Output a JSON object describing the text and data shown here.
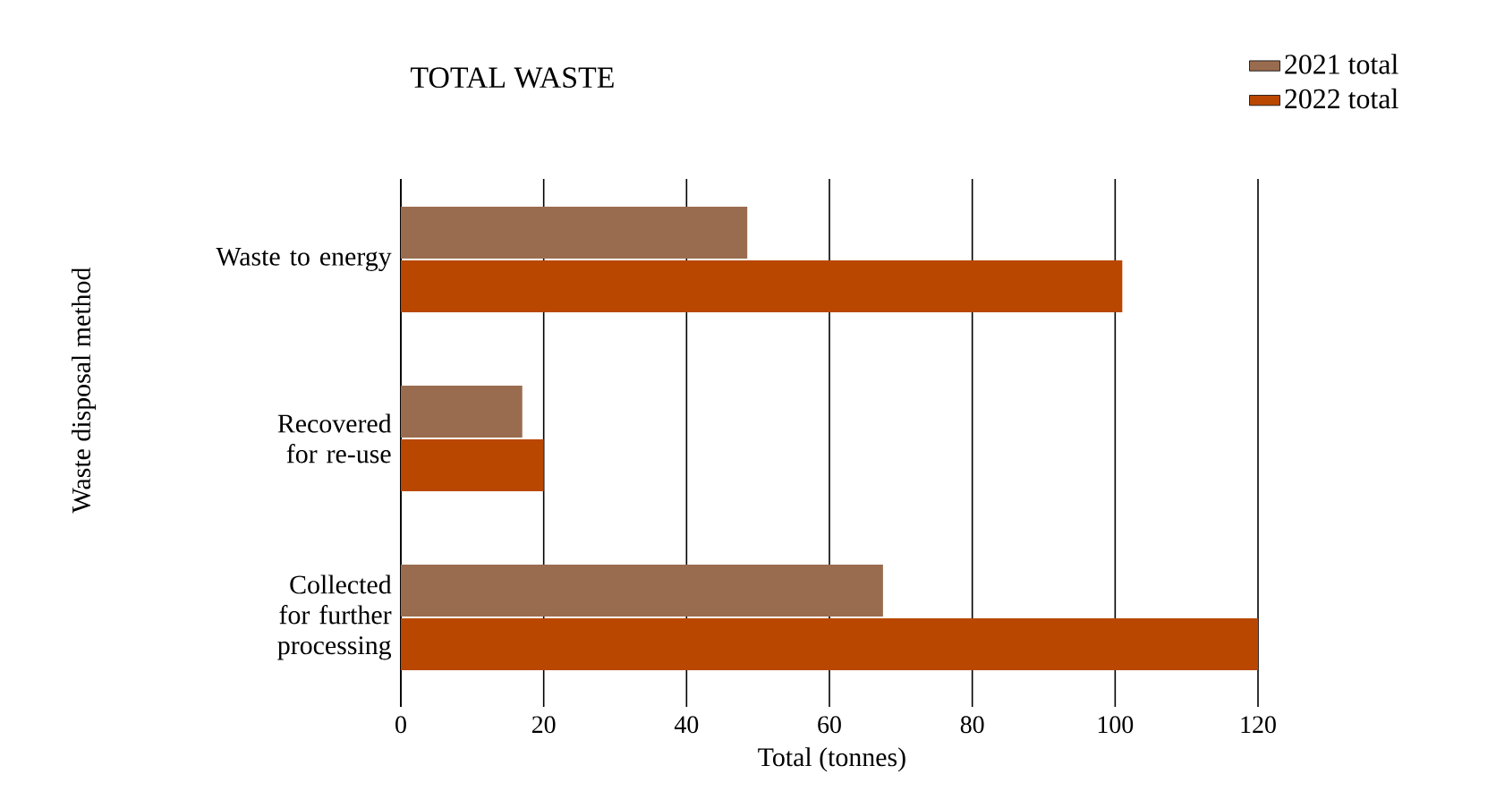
{
  "chart_data": {
    "type": "bar",
    "orientation": "horizontal",
    "title": "TOTAL WASTE",
    "xlabel": "Total (tonnes)",
    "ylabel": "Waste disposal method",
    "categories": [
      "Waste to energy",
      "Recovered for re-use",
      "Collected for further processing"
    ],
    "series": [
      {
        "name": "2021 total",
        "color": "#9a6c4f",
        "values": [
          48.5,
          17,
          67.5
        ]
      },
      {
        "name": "2022 total",
        "color": "#b94700",
        "values": [
          101,
          20,
          120
        ]
      }
    ],
    "xlim": [
      0,
      120
    ],
    "xticks": [
      0,
      20,
      40,
      60,
      80,
      100,
      120
    ],
    "grid": "x",
    "legend": "top right"
  }
}
